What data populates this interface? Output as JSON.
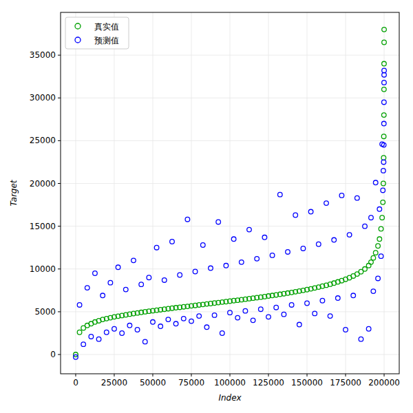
{
  "chart_data": {
    "type": "scatter",
    "x_label": "Index",
    "y_label": "Target",
    "x": [
      0,
      2500,
      5000,
      7500,
      10000,
      12500,
      15000,
      17500,
      20000,
      22500,
      25000,
      27500,
      30000,
      32500,
      35000,
      37500,
      40000,
      42500,
      45000,
      47500,
      50000,
      52500,
      55000,
      57500,
      60000,
      62500,
      65000,
      67500,
      70000,
      72500,
      75000,
      77500,
      80000,
      82500,
      85000,
      87500,
      90000,
      92500,
      95000,
      97500,
      100000,
      102500,
      105000,
      107500,
      110000,
      112500,
      115000,
      117500,
      120000,
      122500,
      125000,
      127500,
      130000,
      132500,
      135000,
      137500,
      140000,
      142500,
      145000,
      147500,
      150000,
      152500,
      155000,
      157500,
      160000,
      162500,
      165000,
      167500,
      170000,
      172500,
      175000,
      177500,
      180000,
      182500,
      185000,
      187500,
      190000,
      191500,
      193000,
      194500,
      196000,
      197000,
      198000,
      198700,
      199200,
      199500,
      199700,
      199800,
      199870,
      199920,
      199960,
      199990,
      200000
    ],
    "series": [
      {
        "name": "真实值",
        "color": "#00a000",
        "marker": "circle",
        "values": [
          0,
          2600,
          3100,
          3400,
          3600,
          3800,
          3950,
          4100,
          4200,
          4300,
          4400,
          4480,
          4560,
          4640,
          4720,
          4790,
          4860,
          4930,
          5000,
          5060,
          5120,
          5180,
          5240,
          5300,
          5360,
          5420,
          5470,
          5520,
          5580,
          5630,
          5690,
          5740,
          5800,
          5850,
          5910,
          5960,
          6020,
          6070,
          6130,
          6180,
          6240,
          6300,
          6350,
          6410,
          6470,
          6530,
          6590,
          6650,
          6710,
          6770,
          6840,
          6900,
          6970,
          7040,
          7110,
          7180,
          7260,
          7340,
          7420,
          7500,
          7590,
          7680,
          7780,
          7880,
          7990,
          8100,
          8220,
          8350,
          8490,
          8640,
          8800,
          8980,
          9180,
          9410,
          9680,
          10000,
          10400,
          10800,
          11300,
          11900,
          12700,
          13500,
          14700,
          16000,
          17800,
          20000,
          23000,
          25500,
          28000,
          31000,
          34000,
          36500,
          38000
        ]
      },
      {
        "name": "预测值",
        "color": "#0000ff",
        "marker": "circle",
        "values": [
          -300,
          5800,
          1200,
          7800,
          2100,
          9500,
          1800,
          6900,
          2600,
          8400,
          3000,
          10200,
          2500,
          7600,
          3400,
          11000,
          2900,
          8200,
          1500,
          9000,
          3800,
          12500,
          3300,
          8700,
          4100,
          13200,
          3600,
          9300,
          4200,
          15800,
          3900,
          9700,
          4500,
          12800,
          3200,
          10100,
          4600,
          15500,
          2500,
          10400,
          4900,
          13500,
          4300,
          10800,
          5100,
          14600,
          4000,
          11200,
          5300,
          13700,
          4400,
          11600,
          5500,
          18700,
          4700,
          12000,
          5800,
          16300,
          3500,
          12400,
          6000,
          16700,
          4800,
          12900,
          6300,
          17700,
          4500,
          13400,
          6600,
          18600,
          2900,
          14000,
          6900,
          18300,
          1800,
          15000,
          3000,
          16000,
          7400,
          20100,
          8900,
          17000,
          11500,
          24600,
          19200,
          21500,
          22500,
          24500,
          27000,
          29500,
          31800,
          32700,
          33200
        ]
      }
    ],
    "xlim": [
      -9800,
      209800
    ],
    "ylim": [
      -2250,
      40000
    ],
    "xticks": [
      0,
      25000,
      50000,
      75000,
      100000,
      125000,
      150000,
      175000,
      200000
    ],
    "yticks": [
      0,
      5000,
      10000,
      15000,
      20000,
      25000,
      30000,
      35000
    ],
    "grid": true,
    "legend": "upper left"
  }
}
